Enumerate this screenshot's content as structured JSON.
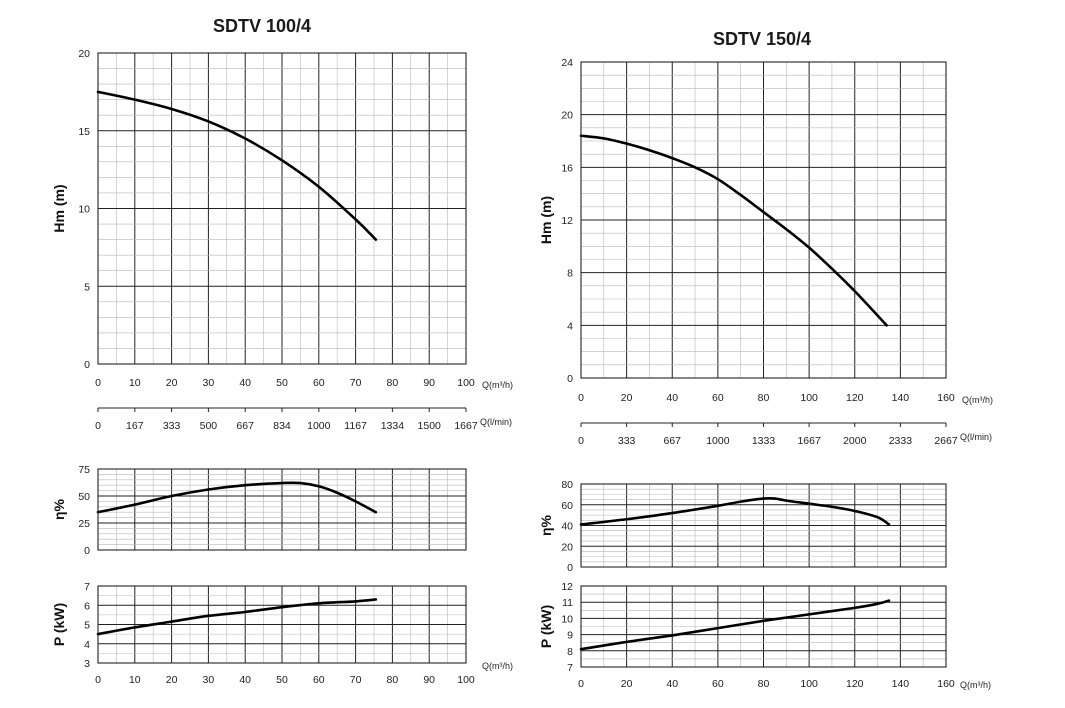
{
  "chart_data": [
    {
      "type": "line",
      "title": "SDTV 100/4",
      "q_unit": "Q(m³/h)",
      "lmin_unit": "Q(l/min)",
      "lmin_ticks": [
        "0",
        "167",
        "333",
        "500",
        "667",
        "834",
        "1000",
        "1167",
        "1334",
        "1500",
        "1667"
      ],
      "x_ticks": [
        "0",
        "10",
        "20",
        "30",
        "40",
        "50",
        "60",
        "70",
        "80",
        "90",
        "100"
      ],
      "xlim": [
        0,
        100
      ],
      "panels": [
        {
          "id": "head",
          "ylabel": "Hm (m)",
          "ylim": [
            0,
            20
          ],
          "yticks": [
            0,
            5,
            10,
            15,
            20
          ],
          "series": [
            {
              "x": [
                0,
                10,
                20,
                30,
                40,
                50,
                60,
                70,
                75.5
              ],
              "y": [
                17.5,
                17.0,
                16.4,
                15.6,
                14.5,
                13.1,
                11.4,
                9.3,
                8.0
              ]
            }
          ]
        },
        {
          "id": "efficiency",
          "ylabel": "η%",
          "ylim": [
            0,
            75
          ],
          "yticks": [
            0,
            25,
            50,
            75
          ],
          "series": [
            {
              "x": [
                0,
                10,
                20,
                30,
                40,
                50,
                55,
                60,
                65,
                70,
                75.5
              ],
              "y": [
                35,
                42,
                50,
                56,
                60,
                62,
                62,
                59,
                53,
                45,
                35
              ]
            }
          ]
        },
        {
          "id": "power",
          "ylabel": "P (kW)",
          "ylim": [
            3,
            7
          ],
          "yticks": [
            3,
            4,
            5,
            6,
            7
          ],
          "series": [
            {
              "x": [
                0,
                10,
                20,
                30,
                40,
                50,
                60,
                70,
                75.5
              ],
              "y": [
                4.5,
                4.85,
                5.15,
                5.45,
                5.65,
                5.9,
                6.1,
                6.2,
                6.3
              ]
            }
          ]
        }
      ]
    },
    {
      "type": "line",
      "title": "SDTV 150/4",
      "q_unit": "Q(m³/h)",
      "lmin_unit": "Q(l/min)",
      "lmin_ticks": [
        "0",
        "333",
        "667",
        "1000",
        "1333",
        "1667",
        "2000",
        "2333",
        "2667"
      ],
      "x_ticks": [
        "0",
        "20",
        "40",
        "60",
        "80",
        "100",
        "120",
        "140",
        "160"
      ],
      "xlim": [
        0,
        160
      ],
      "panels": [
        {
          "id": "head",
          "ylabel": "Hm (m)",
          "ylim": [
            0,
            24
          ],
          "yticks": [
            0,
            4,
            8,
            12,
            16,
            20,
            24
          ],
          "series": [
            {
              "x": [
                0,
                10,
                20,
                30,
                40,
                50,
                60,
                70,
                80,
                90,
                100,
                110,
                120,
                134
              ],
              "y": [
                18.4,
                18.2,
                17.8,
                17.3,
                16.7,
                16.0,
                15.1,
                13.9,
                12.6,
                11.3,
                9.9,
                8.3,
                6.6,
                4.0
              ]
            }
          ]
        },
        {
          "id": "efficiency",
          "ylabel": "η%",
          "ylim": [
            0,
            80
          ],
          "yticks": [
            0,
            20,
            40,
            60,
            80
          ],
          "series": [
            {
              "x": [
                0,
                20,
                40,
                60,
                70,
                80,
                85,
                90,
                100,
                110,
                120,
                130,
                135
              ],
              "y": [
                41,
                46,
                52,
                59,
                63,
                66,
                66,
                64,
                61,
                58,
                54,
                48,
                41
              ]
            }
          ]
        },
        {
          "id": "power",
          "ylabel": "P (kW)",
          "ylim": [
            7,
            12
          ],
          "yticks": [
            7,
            8,
            9,
            10,
            11,
            12
          ],
          "series": [
            {
              "x": [
                0,
                20,
                40,
                60,
                80,
                100,
                120,
                130,
                135
              ],
              "y": [
                8.1,
                8.55,
                8.95,
                9.4,
                9.85,
                10.25,
                10.65,
                10.9,
                11.1
              ]
            }
          ]
        }
      ]
    }
  ]
}
